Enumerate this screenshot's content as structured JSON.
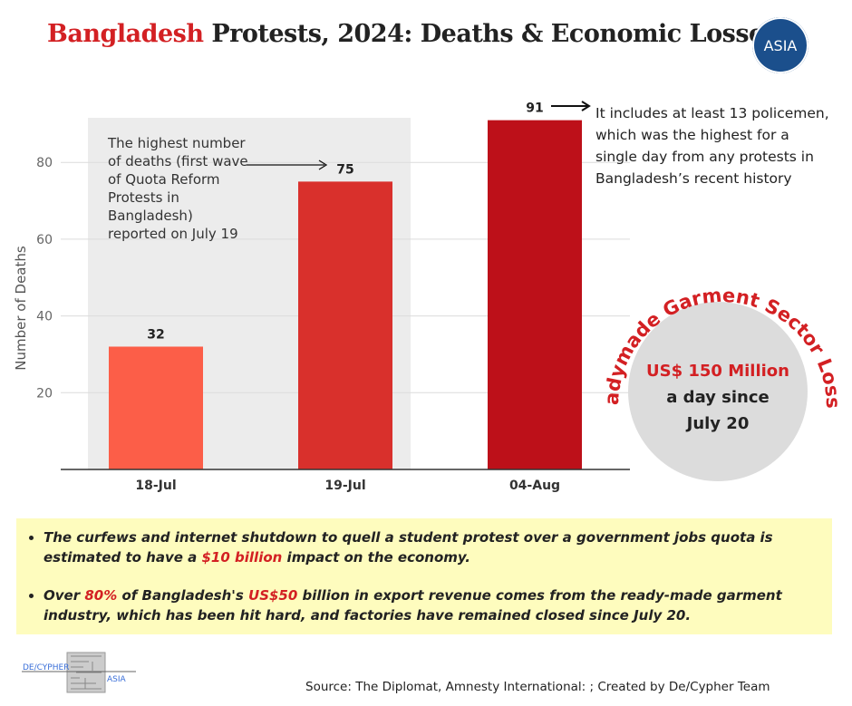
{
  "title": {
    "accent": "Bangladesh",
    "rest": " Protests, 2024: Deaths & Economic Losses"
  },
  "logo": {
    "text": "ASIA"
  },
  "chart_data": {
    "type": "bar",
    "categories": [
      "18-Jul",
      "19-Jul",
      "04-Aug"
    ],
    "values": [
      32,
      75,
      91
    ],
    "colors": [
      "#fc5e48",
      "#d9302c",
      "#bd1019"
    ],
    "ylabel": "Number of Deaths",
    "yticks": [
      20,
      40,
      60,
      80
    ],
    "ylim": [
      0,
      95
    ],
    "grid": true
  },
  "annotations": {
    "highest_wave": "The highest number of deaths (first wave of Quota Reform Protests in Bangladesh) reported on July 19",
    "policemen": "It includes at least 13 policemen, which was the highest for a single day from any protests in Bangladesh’s recent history"
  },
  "garment": {
    "arc_title": "Readymade Garment Sector Losses",
    "amount": "US$ 150 Million",
    "line2": "a day since",
    "line3": "July 20"
  },
  "bullets": [
    {
      "pre": "The curfews and internet shutdown to quell a student protest over a government jobs quota is estimated to have a ",
      "hl": "$10 billion",
      "post": " impact on the economy."
    },
    {
      "pre": "Over ",
      "hl": "80%",
      "mid": " of Bangladesh's ",
      "hl2": "US$50",
      "post": " billion in export revenue comes from the ready-made garment industry, which has been hit hard, and factories have remained closed since July 20."
    }
  ],
  "footer": {
    "brand_left": "DE/CYPHER",
    "brand_right": "ASIA",
    "source": "Source: The Diplomat, Amnesty International: ; Created by De/Cypher Team"
  }
}
